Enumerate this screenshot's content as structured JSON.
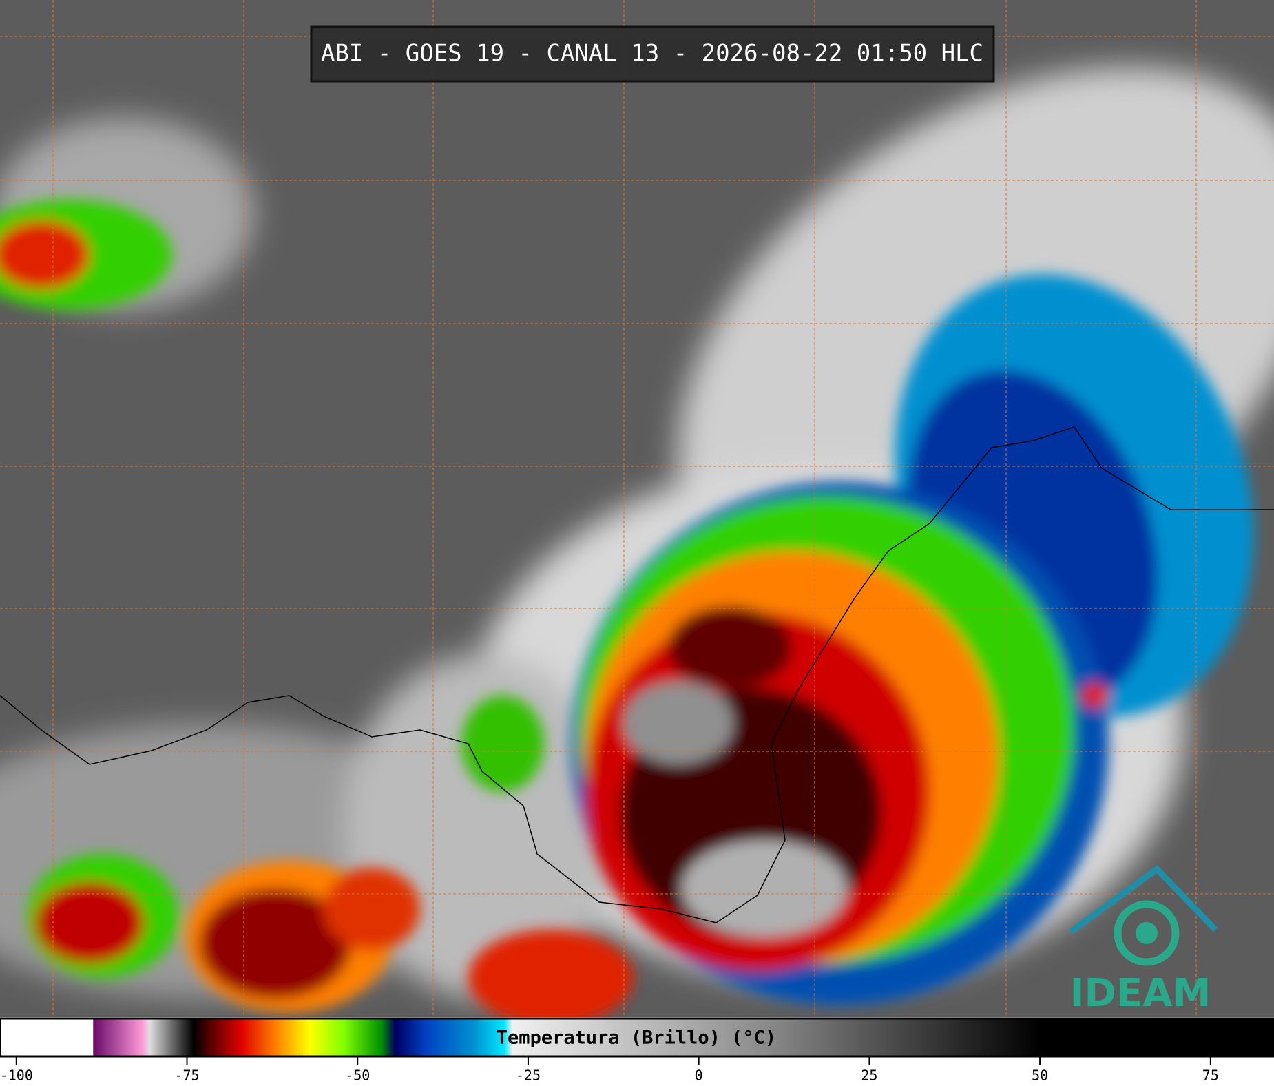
{
  "title": "ABI - GOES 19 - CANAL 13 - 2026-08-22 01:50 HLC",
  "logo": "IDEAM",
  "colorbar": {
    "label": "Temperatura (Brillo) (°C)",
    "xlim": [
      -102.4,
      84.3
    ],
    "xticks": [
      -100,
      -75,
      -50,
      -25,
      0,
      25,
      50,
      75
    ],
    "colorscale": [
      [
        -102.4,
        "#ffffff"
      ],
      [
        -88.8,
        "#ffffff"
      ],
      [
        -88.7,
        "#6a0a6a"
      ],
      [
        -81.5,
        "#ff9ad8"
      ],
      [
        -80.5,
        "#e0e0e0"
      ],
      [
        -75.5,
        "#303030"
      ],
      [
        -74,
        "#000000"
      ],
      [
        -72,
        "#4a0000"
      ],
      [
        -67,
        "#e00000"
      ],
      [
        -62,
        "#ff8000"
      ],
      [
        -57,
        "#ffff00"
      ],
      [
        -52,
        "#80ff00"
      ],
      [
        -46.5,
        "#009000"
      ],
      [
        -44.5,
        "#000060"
      ],
      [
        -40,
        "#0040c0"
      ],
      [
        -33,
        "#0090d0"
      ],
      [
        -28.5,
        "#00e8ff"
      ],
      [
        -27.3,
        "#f0f0f0"
      ],
      [
        10,
        "#8a8a8a"
      ],
      [
        50,
        "#000000"
      ],
      [
        84.3,
        "#000000"
      ]
    ]
  }
}
